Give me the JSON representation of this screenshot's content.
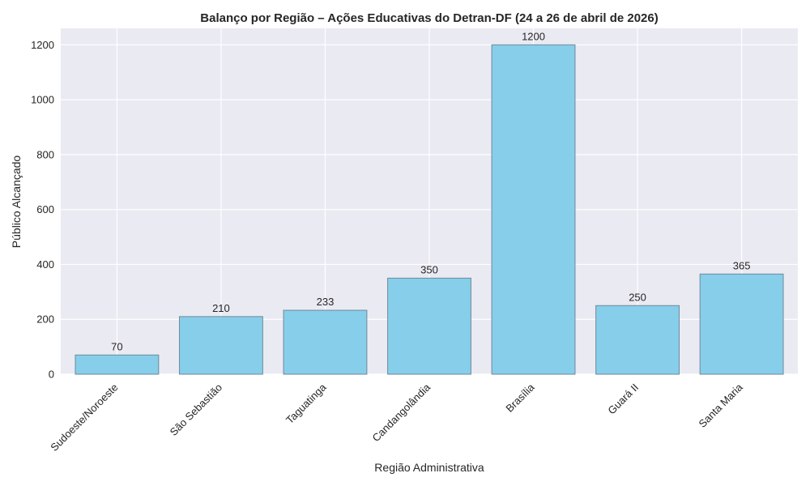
{
  "chart_data": {
    "type": "bar",
    "title": "Balanço por Região – Ações Educativas do Detran-DF (24 a 26 de abril de 2026)",
    "xlabel": "Região Administrativa",
    "ylabel": "Público Alcançado",
    "categories": [
      "Sudoeste/Noroeste",
      "São Sebastião",
      "Taguatinga",
      "Candangolândia",
      "Brasília",
      "Guará II",
      "Santa Maria"
    ],
    "values": [
      70,
      210,
      233,
      350,
      1200,
      250,
      365
    ],
    "ylim": [
      0,
      1260
    ],
    "yticks": [
      0,
      200,
      400,
      600,
      800,
      1000,
      1200
    ],
    "grid": true,
    "bar_color": "#87ceeb",
    "plot_background": "#eaeaf2"
  }
}
